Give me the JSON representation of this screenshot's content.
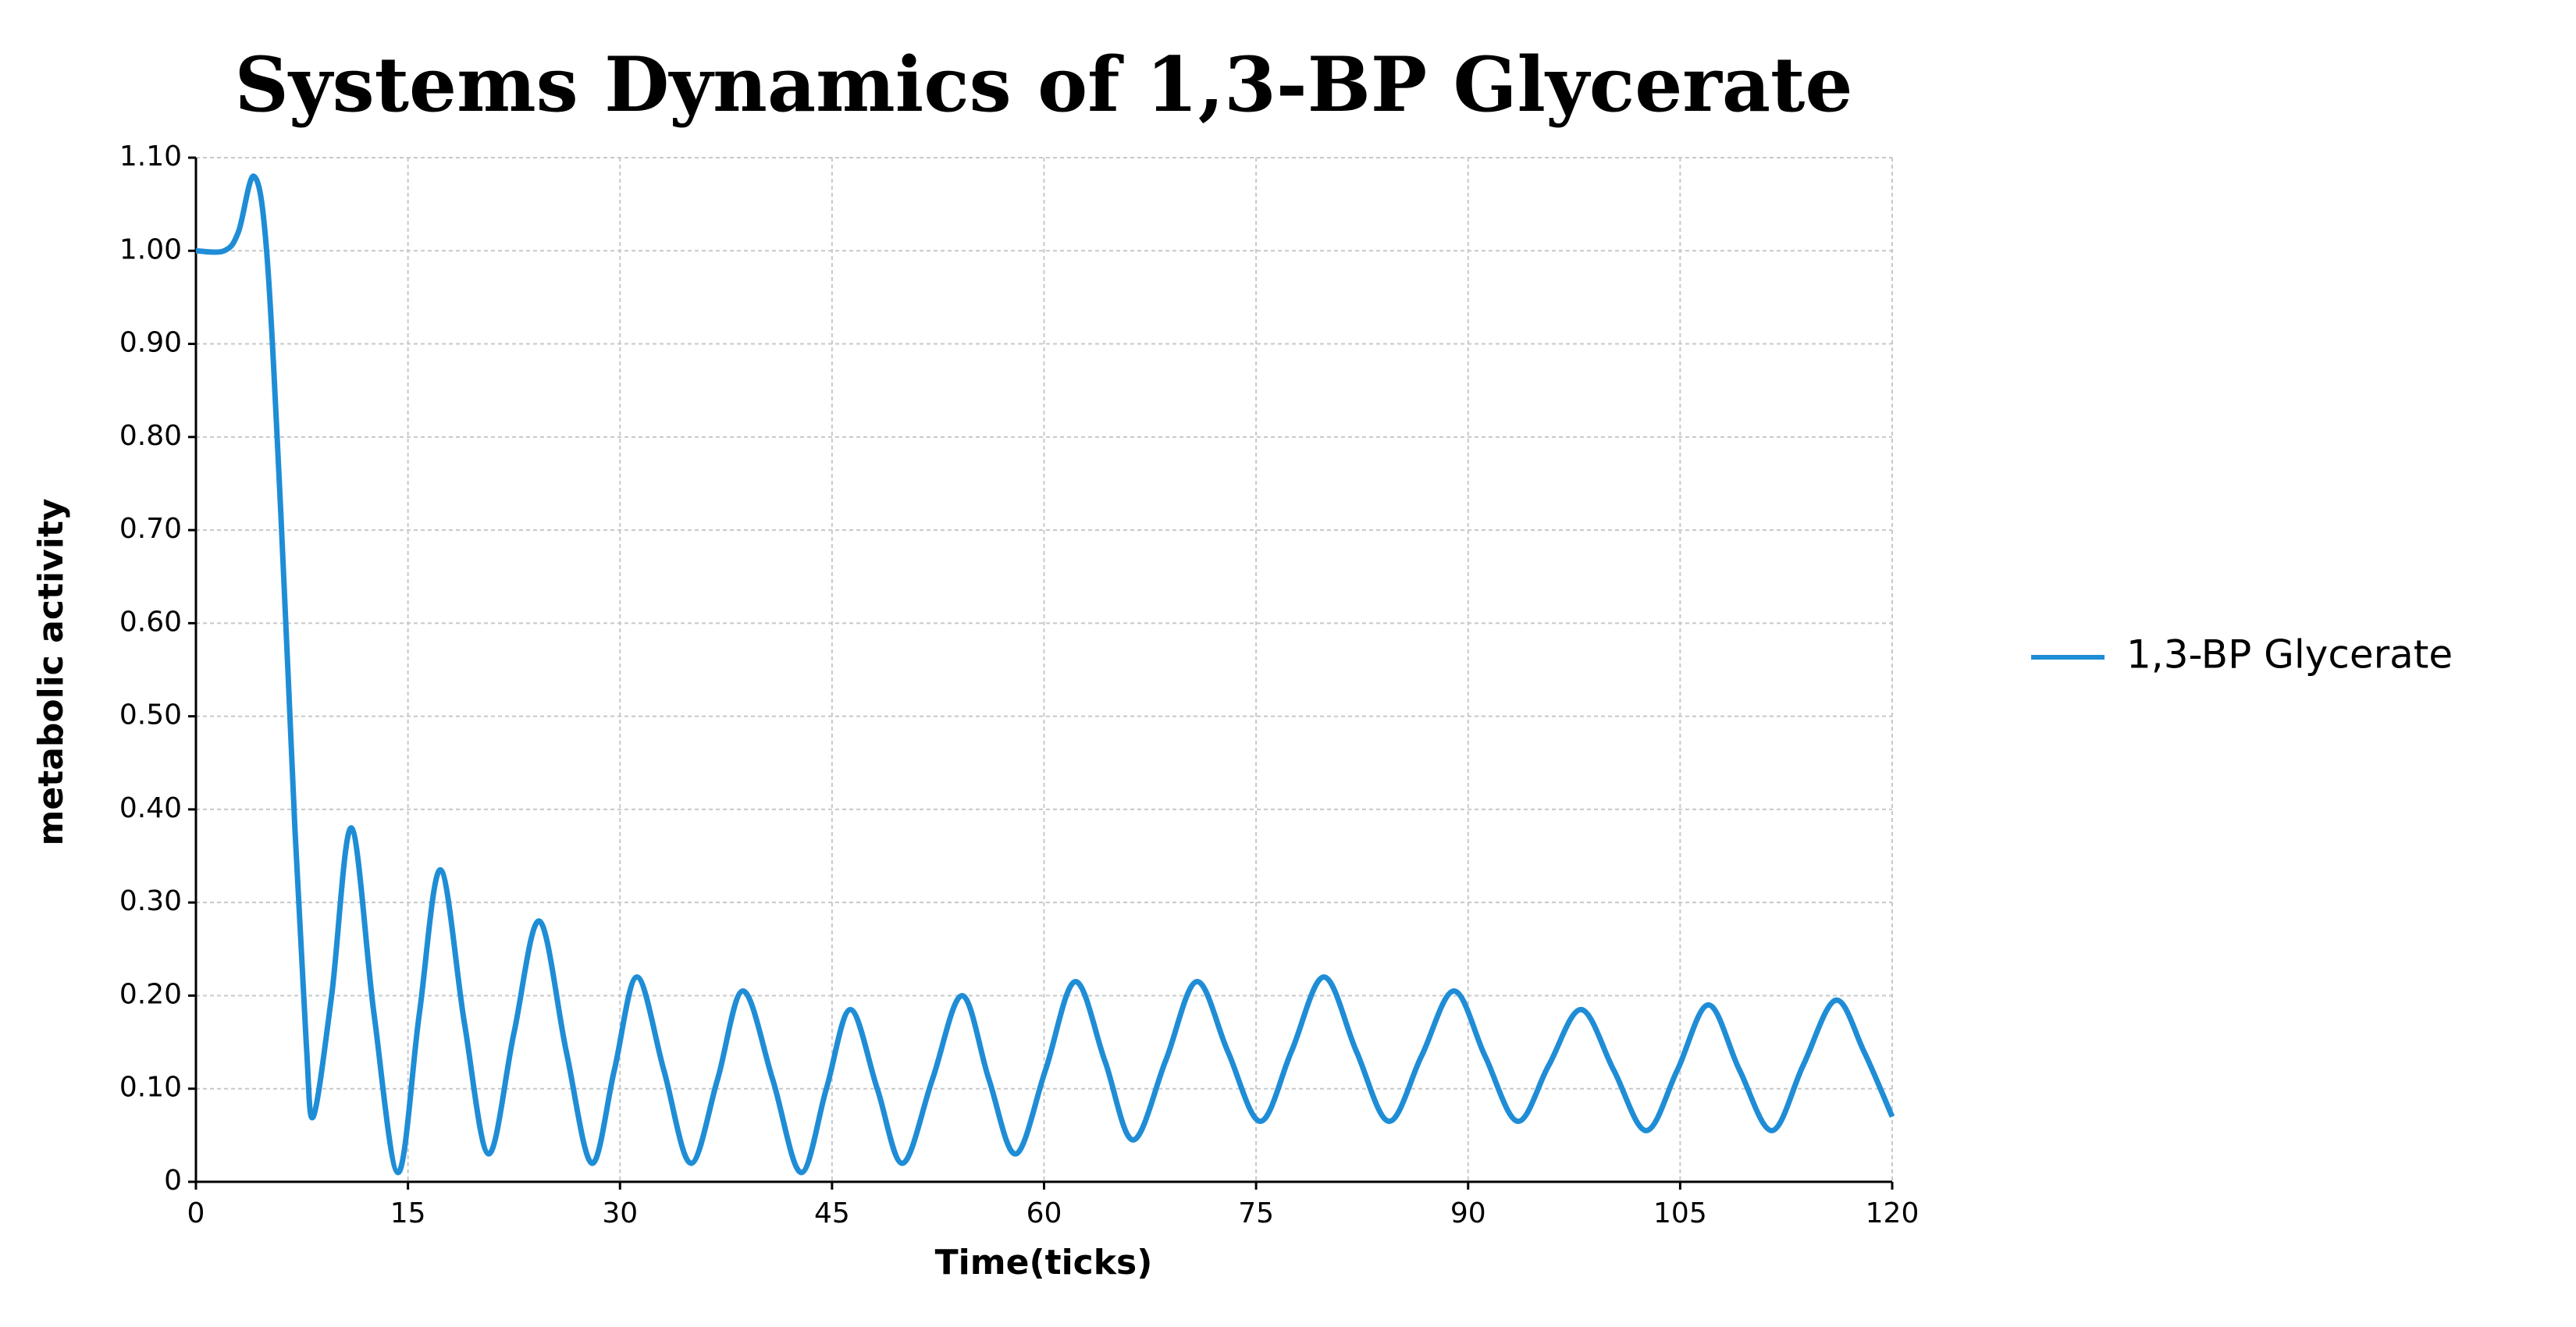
{
  "chart_data": {
    "type": "line",
    "title": "Systems Dynamics of 1,3-BP Glycerate",
    "x_label": "Time(ticks)",
    "y_label": "metabolic activity",
    "x": [
      0,
      2,
      3,
      4.1,
      5,
      6,
      7,
      7.8,
      8.3,
      9.6,
      11,
      12.6,
      14.3,
      15.8,
      17.3,
      19,
      20.7,
      22.5,
      24.3,
      26.2,
      28,
      29.6,
      31.2,
      33.1,
      35,
      36.9,
      38.7,
      40.8,
      42.8,
      44.6,
      46.3,
      48.2,
      50,
      52.1,
      54.2,
      56.1,
      58,
      60.1,
      62.2,
      64.3,
      66.3,
      68.6,
      70.8,
      73,
      75.3,
      77.5,
      79.8,
      82.1,
      84.4,
      86.7,
      89,
      91.2,
      93.5,
      95.7,
      98,
      100.3,
      102.6,
      104.8,
      107,
      109.2,
      111.5,
      113.7,
      116,
      118,
      120
    ],
    "series": [
      {
        "name": "1,3-BP Glycerate",
        "color": "#1f8dd6",
        "values": [
          1.0,
          1.0,
          1.02,
          1.08,
          1.0,
          0.72,
          0.38,
          0.15,
          0.07,
          0.2,
          0.38,
          0.18,
          0.01,
          0.18,
          0.335,
          0.17,
          0.03,
          0.16,
          0.28,
          0.14,
          0.02,
          0.12,
          0.22,
          0.12,
          0.02,
          0.11,
          0.205,
          0.11,
          0.01,
          0.1,
          0.185,
          0.1,
          0.02,
          0.11,
          0.2,
          0.11,
          0.03,
          0.12,
          0.215,
          0.13,
          0.045,
          0.13,
          0.215,
          0.14,
          0.065,
          0.14,
          0.22,
          0.14,
          0.065,
          0.135,
          0.205,
          0.135,
          0.065,
          0.125,
          0.185,
          0.12,
          0.055,
          0.12,
          0.19,
          0.12,
          0.055,
          0.125,
          0.195,
          0.14,
          0.07
        ]
      }
    ],
    "xlim": [
      0,
      120
    ],
    "ylim": [
      0,
      1.1
    ],
    "xticks": [
      0,
      15,
      30,
      45,
      60,
      75,
      90,
      105,
      120
    ],
    "yticks": [
      0,
      {
        "value": 0.1,
        "label": "0.10"
      },
      {
        "value": 0.2,
        "label": "0.20"
      },
      {
        "value": 0.3,
        "label": "0.30"
      },
      {
        "value": 0.4,
        "label": "0.40"
      },
      {
        "value": 0.5,
        "label": "0.50"
      },
      {
        "value": 0.6,
        "label": "0.60"
      },
      {
        "value": 0.7,
        "label": "0.70"
      },
      {
        "value": 0.8,
        "label": "0.80"
      },
      {
        "value": 0.9,
        "label": "0.90"
      },
      {
        "value": 1.0,
        "label": "1.00"
      },
      {
        "value": 1.1,
        "label": "1.10"
      }
    ],
    "grid": true,
    "legend": "right"
  }
}
